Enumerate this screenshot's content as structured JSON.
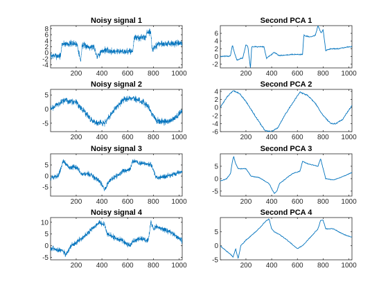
{
  "chart_data": [
    {
      "type": "line",
      "title": "Noisy signal 1",
      "xlim": [
        1,
        1024
      ],
      "ylim": [
        -5,
        9
      ],
      "xticks": [
        200,
        400,
        600,
        800,
        1000
      ],
      "yticks": [
        -4,
        -2,
        0,
        2,
        4,
        6,
        8
      ],
      "noisy": true,
      "series": [
        {
          "color": "#0072BD",
          "x": [
            1,
            80,
            90,
            200,
            210,
            235,
            245,
            300,
            340,
            360,
            420,
            460,
            600,
            640,
            650,
            740,
            750,
            780,
            790,
            820,
            830,
            1024
          ],
          "y": [
            -1,
            -1,
            3,
            3,
            2.5,
            -3,
            2.5,
            2,
            2,
            -1,
            1,
            0.5,
            0.5,
            0.5,
            5,
            5,
            7,
            7,
            1,
            2,
            3,
            3
          ]
        }
      ]
    },
    {
      "type": "line",
      "title": "Second PCA 1",
      "xlim": [
        1,
        1024
      ],
      "ylim": [
        -3,
        8
      ],
      "xticks": [
        200,
        400,
        600,
        800,
        1000
      ],
      "yticks": [
        -2,
        0,
        2,
        4,
        6
      ],
      "noisy": false,
      "series": [
        {
          "color": "#0072BD",
          "x": [
            1,
            30,
            60,
            80,
            95,
            110,
            130,
            160,
            175,
            200,
            215,
            235,
            245,
            265,
            300,
            340,
            360,
            420,
            460,
            560,
            600,
            640,
            650,
            700,
            740,
            760,
            785,
            800,
            820,
            860,
            920,
            1000,
            1024
          ],
          "y": [
            0,
            0,
            0,
            0.2,
            3,
            1,
            -1,
            -0.5,
            -0.5,
            3,
            2.5,
            -3,
            2.5,
            2.5,
            2.5,
            2.5,
            -0.5,
            1,
            0.2,
            0.5,
            0.5,
            0.5,
            5.5,
            5,
            5.5,
            8,
            6,
            7,
            1.5,
            2,
            2,
            2.5,
            2.5
          ]
        }
      ]
    },
    {
      "type": "line",
      "title": "Noisy signal 2",
      "xlim": [
        1,
        1024
      ],
      "ylim": [
        -8,
        7
      ],
      "xticks": [
        200,
        400,
        600,
        800,
        1000
      ],
      "yticks": [
        -5,
        0,
        5
      ],
      "noisy": true,
      "series": [
        {
          "color": "#0072BD",
          "x": [
            1,
            100,
            200,
            300,
            350,
            420,
            500,
            560,
            620,
            700,
            760,
            820,
            880,
            950,
            1024
          ],
          "y": [
            0,
            3,
            2.5,
            -3,
            -5,
            -5,
            0,
            3,
            4,
            3,
            1,
            -4,
            -4.5,
            -4,
            -0.5
          ]
        }
      ]
    },
    {
      "type": "line",
      "title": "Second PCA 2",
      "xlim": [
        1,
        1024
      ],
      "ylim": [
        -6,
        4.5
      ],
      "xticks": [
        200,
        400,
        600,
        800,
        1000
      ],
      "yticks": [
        -6,
        -4,
        -2,
        0,
        2,
        4
      ],
      "noisy": false,
      "series": [
        {
          "color": "#0072BD",
          "x": [
            1,
            50,
            100,
            150,
            200,
            250,
            300,
            350,
            400,
            450,
            500,
            560,
            620,
            680,
            740,
            800,
            860,
            900,
            950,
            1024
          ],
          "y": [
            0,
            2.5,
            4.2,
            3.5,
            1.5,
            -1,
            -3.5,
            -5.8,
            -6,
            -5,
            -2,
            1,
            3.8,
            3,
            1,
            -2,
            -4,
            -4,
            -3,
            0.5
          ]
        }
      ]
    },
    {
      "type": "line",
      "title": "Noisy signal 3",
      "xlim": [
        1,
        1024
      ],
      "ylim": [
        -9,
        10
      ],
      "xticks": [
        200,
        400,
        600,
        800,
        1000
      ],
      "yticks": [
        -5,
        0,
        5
      ],
      "noisy": true,
      "series": [
        {
          "color": "#0072BD",
          "x": [
            1,
            60,
            80,
            100,
            140,
            200,
            240,
            300,
            380,
            420,
            460,
            560,
            620,
            640,
            680,
            780,
            800,
            820,
            880,
            960,
            1024
          ],
          "y": [
            -1,
            0,
            3,
            7,
            4,
            4,
            1,
            1,
            -2,
            -6,
            -2,
            2,
            3,
            7,
            6,
            5,
            3,
            -0.5,
            -0.5,
            1,
            2
          ]
        }
      ]
    },
    {
      "type": "line",
      "title": "Second PCA 3",
      "xlim": [
        1,
        1024
      ],
      "ylim": [
        -7,
        10
      ],
      "xticks": [
        200,
        400,
        600,
        800,
        1000
      ],
      "yticks": [
        -5,
        0,
        5
      ],
      "noisy": false,
      "series": [
        {
          "color": "#0072BD",
          "x": [
            1,
            50,
            80,
            95,
            105,
            120,
            140,
            200,
            240,
            300,
            380,
            400,
            420,
            440,
            460,
            560,
            620,
            640,
            680,
            760,
            780,
            800,
            820,
            880,
            960,
            1024
          ],
          "y": [
            -1,
            0,
            2,
            7,
            9,
            6,
            4,
            4,
            1,
            0.5,
            -2,
            -4,
            -6,
            -5,
            -2,
            2,
            3,
            7,
            6,
            5,
            8,
            4,
            0,
            -0.5,
            1,
            2.5
          ]
        }
      ]
    },
    {
      "type": "line",
      "title": "Noisy signal 4",
      "xlim": [
        1,
        1024
      ],
      "ylim": [
        -6,
        12
      ],
      "xticks": [
        200,
        400,
        600,
        800,
        1000
      ],
      "yticks": [
        -5,
        0,
        5,
        10
      ],
      "noisy": true,
      "series": [
        {
          "color": "#0072BD",
          "x": [
            1,
            80,
            100,
            120,
            140,
            160,
            240,
            300,
            380,
            420,
            440,
            560,
            620,
            640,
            700,
            760,
            780,
            800,
            820,
            880,
            960,
            1024
          ],
          "y": [
            -1,
            -2,
            -2.5,
            -4,
            -2,
            0,
            3,
            6,
            10,
            9,
            5,
            2,
            0,
            2,
            3,
            2,
            10,
            7,
            8,
            7,
            5,
            2
          ]
        }
      ]
    },
    {
      "type": "line",
      "title": "Second PCA 4",
      "xlim": [
        1,
        1024
      ],
      "ylim": [
        -5,
        10
      ],
      "xticks": [
        200,
        400,
        600,
        800,
        1000
      ],
      "yticks": [
        -5,
        0,
        5
      ],
      "noisy": false,
      "series": [
        {
          "color": "#0072BD",
          "x": [
            1,
            50,
            80,
            100,
            120,
            130,
            140,
            160,
            200,
            240,
            300,
            360,
            380,
            400,
            420,
            460,
            520,
            600,
            640,
            700,
            760,
            780,
            800,
            820,
            880,
            960,
            1024
          ],
          "y": [
            0,
            -2,
            -3,
            -4,
            -1,
            -3,
            -4.5,
            0,
            2,
            3.5,
            6,
            9,
            9.5,
            6,
            5,
            4,
            2,
            -1,
            0,
            3,
            6,
            9,
            9,
            6,
            6,
            4,
            3
          ]
        }
      ]
    }
  ]
}
